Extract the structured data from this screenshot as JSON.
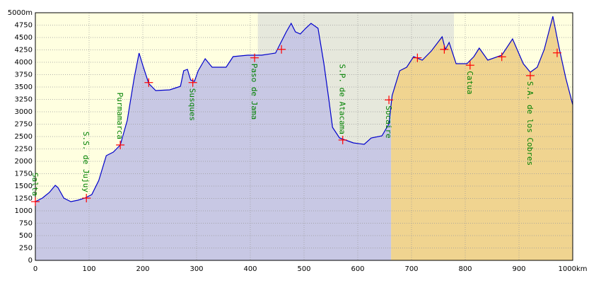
{
  "chart_data": {
    "type": "elevation-profile",
    "x": [
      0,
      13,
      26,
      37,
      42,
      53,
      66,
      79,
      92,
      105,
      118,
      132,
      145,
      158,
      171,
      184,
      193,
      201,
      211,
      224,
      250,
      270,
      276,
      283,
      289,
      296,
      303,
      316,
      329,
      355,
      368,
      395,
      421,
      447,
      467,
      476,
      484,
      493,
      503,
      513,
      526,
      537,
      546,
      553,
      566,
      592,
      612,
      625,
      645,
      658,
      664,
      678,
      691,
      704,
      720,
      737,
      757,
      763,
      770,
      783,
      803,
      816,
      826,
      842,
      868,
      888,
      908,
      921,
      934,
      947,
      963,
      974,
      987,
      1000
    ],
    "values": [
      1186,
      1257,
      1371,
      1514,
      1471,
      1257,
      1186,
      1214,
      1257,
      1329,
      1614,
      2114,
      2186,
      2329,
      2829,
      3686,
      4186,
      3900,
      3571,
      3429,
      3443,
      3514,
      3829,
      3857,
      3643,
      3614,
      3829,
      4071,
      3900,
      3900,
      4114,
      4143,
      4143,
      4186,
      4614,
      4786,
      4614,
      4571,
      4686,
      4786,
      4686,
      3971,
      3257,
      2686,
      2471,
      2371,
      2343,
      2471,
      2514,
      2757,
      3329,
      3829,
      3900,
      4114,
      4043,
      4229,
      4514,
      4257,
      4400,
      3971,
      3971,
      4114,
      4286,
      4043,
      4143,
      4471,
      3971,
      3800,
      3900,
      4257,
      4929,
      4329,
      3686,
      3143
    ],
    "line_color": "#0000cc",
    "fill_colors": [
      "#c8c8e4",
      "#f0d490"
    ],
    "fill_split": 662,
    "shaded_band": [
      414,
      779
    ],
    "markers": [
      {
        "label": "Salta",
        "x": 0,
        "y": 1186
      },
      {
        "label": "S.S. de Jujuy",
        "x": 95,
        "y": 1257
      },
      {
        "label": "Purmamarca",
        "x": 158,
        "y": 2330
      },
      {
        "x": 211,
        "y": 3590
      },
      {
        "label": "Susques",
        "x": 293,
        "y": 3590
      },
      {
        "label": "Paso de Jama",
        "x": 408,
        "y": 4090
      },
      {
        "x": 458,
        "y": 4260
      },
      {
        "label": "S.P. de Atacama",
        "x": 572,
        "y": 2430
      },
      {
        "label": "Socaire",
        "x": 658,
        "y": 3240
      },
      {
        "x": 711,
        "y": 4090
      },
      {
        "x": 761,
        "y": 4260
      },
      {
        "label": "Catua",
        "x": 809,
        "y": 3940
      },
      {
        "x": 868,
        "y": 4110
      },
      {
        "label": "S.A. de los Cobres",
        "x": 921,
        "y": 3730
      },
      {
        "x": 971,
        "y": 4190
      }
    ],
    "xlim": [
      0,
      1000
    ],
    "xticks": [
      0,
      100,
      200,
      300,
      400,
      500,
      600,
      700,
      800,
      900,
      {
        "value": 1000,
        "label": "1000km"
      }
    ],
    "ylim": [
      0,
      5000
    ],
    "yticks": [
      0,
      250,
      500,
      750,
      1000,
      1250,
      1500,
      1750,
      2000,
      2250,
      2500,
      2750,
      3000,
      3250,
      3500,
      3750,
      4000,
      4250,
      4500,
      4750,
      {
        "value": 5000,
        "label": "5000m"
      }
    ],
    "grid": true
  }
}
